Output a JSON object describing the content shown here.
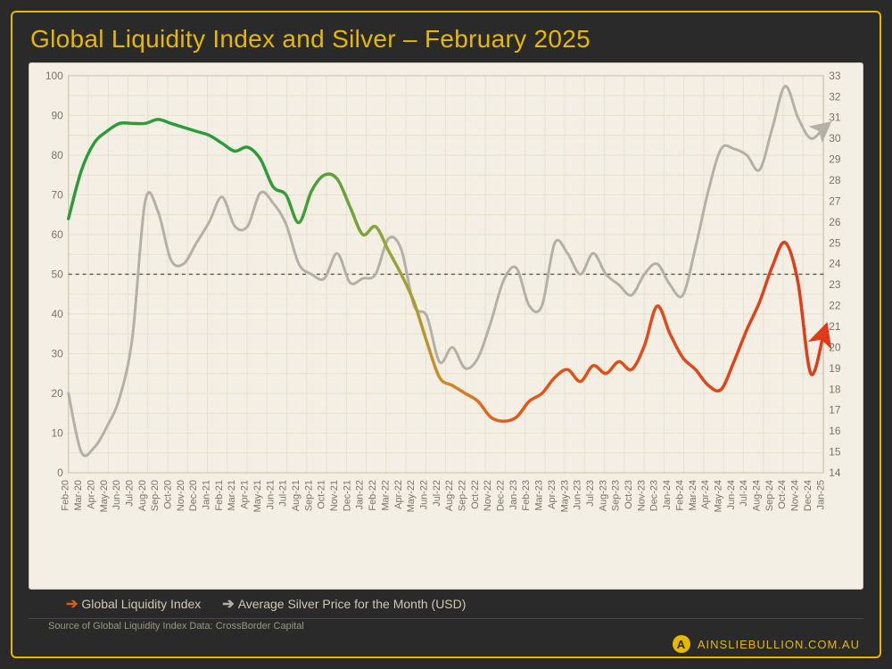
{
  "title": "Global Liquidity Index and Silver – February 2025",
  "legend": {
    "series1": "Global Liquidity Index",
    "series2": "Average Silver Price for the Month (USD)"
  },
  "source": "Source of Global Liquidity Index Data: CrossBorder Capital",
  "brand": "AINSLIEBULLION.COM.AU",
  "chart": {
    "type": "line-dual-axis",
    "background": "#f3efe4",
    "grid_color": "#e6e0cc",
    "border_color": "#cfc9b3",
    "font_color": "#7a7464",
    "axis_fontsize": 12,
    "xlabel_fontsize": 11,
    "y_left": {
      "min": 0,
      "max": 100,
      "step": 10,
      "label": ""
    },
    "y_right": {
      "min": 14,
      "max": 33,
      "step": 1,
      "label": ""
    },
    "x_categories": [
      "Feb-20",
      "Mar-20",
      "Apr-20",
      "May-20",
      "Jun-20",
      "Jul-20",
      "Aug-20",
      "Sep-20",
      "Oct-20",
      "Nov-20",
      "Dec-20",
      "Jan-21",
      "Feb-21",
      "Mar-21",
      "Apr-21",
      "May-21",
      "Jun-21",
      "Jul-21",
      "Aug-21",
      "Sep-21",
      "Oct-21",
      "Nov-21",
      "Dec-21",
      "Jan-22",
      "Feb-22",
      "Mar-22",
      "Apr-22",
      "May-22",
      "Jun-22",
      "Jul-22",
      "Aug-22",
      "Sep-22",
      "Oct-22",
      "Nov-22",
      "Dec-22",
      "Jan-23",
      "Feb-23",
      "Mar-23",
      "Apr-23",
      "May-23",
      "Jun-23",
      "Jul-23",
      "Aug-23",
      "Sep-23",
      "Oct-23",
      "Nov-23",
      "Dec-23",
      "Jan-24",
      "Feb-24",
      "Mar-24",
      "Apr-24",
      "May-24",
      "Jun-24",
      "Jul-24",
      "Aug-24",
      "Sep-24",
      "Oct-24",
      "Nov-24",
      "Dec-24",
      "Jan-25"
    ],
    "reference_line": {
      "y_left": 50,
      "dash": "4,4",
      "color": "#5a5648"
    },
    "series": [
      {
        "name": "Global Liquidity Index",
        "axis": "left",
        "line_width": 3.5,
        "end_arrow": true,
        "gradient": true,
        "gradient_stops": [
          {
            "t": 0.0,
            "color": "#2e9b3a"
          },
          {
            "t": 0.28,
            "color": "#2e9b3a"
          },
          {
            "t": 0.42,
            "color": "#8fa83a"
          },
          {
            "t": 0.5,
            "color": "#d08a2a"
          },
          {
            "t": 0.58,
            "color": "#e05a1a"
          },
          {
            "t": 1.0,
            "color": "#e03a1a"
          }
        ],
        "values": [
          64,
          76,
          83,
          86,
          88,
          88,
          88,
          89,
          88,
          87,
          86,
          85,
          83,
          81,
          82,
          79,
          72,
          70,
          63,
          71,
          75,
          74,
          67,
          60,
          62,
          56,
          50,
          43,
          33,
          24,
          22,
          20,
          18,
          14,
          13,
          14,
          18,
          20,
          24,
          26,
          23,
          27,
          25,
          28,
          26,
          32,
          42,
          35,
          29,
          26,
          22,
          21,
          28,
          36,
          43,
          52,
          58,
          48,
          25,
          35
        ]
      },
      {
        "name": "Average Silver Price (USD)",
        "axis": "right",
        "line_width": 3.0,
        "color": "#b3b0a6",
        "end_arrow": true,
        "values": [
          17.8,
          15.0,
          15.2,
          16.2,
          17.6,
          20.5,
          27.0,
          26.5,
          24.2,
          24.0,
          25.0,
          26.0,
          27.2,
          25.8,
          25.8,
          27.4,
          26.9,
          25.9,
          24.0,
          23.5,
          23.3,
          24.5,
          23.1,
          23.3,
          23.5,
          25.2,
          24.7,
          22.0,
          21.5,
          19.3,
          20.0,
          19.0,
          19.5,
          21.2,
          23.2,
          23.8,
          22.0,
          22.0,
          25.0,
          24.5,
          23.5,
          24.5,
          23.5,
          23.0,
          22.5,
          23.5,
          24.0,
          23.0,
          22.5,
          24.8,
          27.5,
          29.5,
          29.5,
          29.2,
          28.5,
          30.5,
          32.5,
          31.0,
          30.0,
          30.5
        ]
      }
    ]
  }
}
